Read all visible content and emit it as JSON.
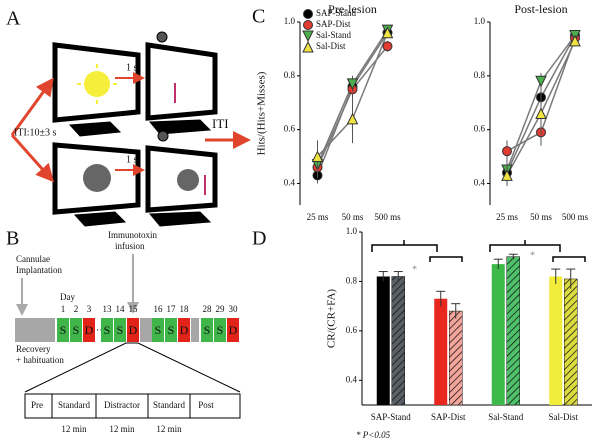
{
  "panel_labels": [
    "A",
    "B",
    "C",
    "D"
  ],
  "diagram_a": {
    "delay_top": "1 s",
    "iti_start": "ITI:10±3 s",
    "delay_bottom": "1 s",
    "iti_end": "ITI"
  },
  "timeline": {
    "cannulae_1": "Cannulae",
    "cannulae_2": "Implantation",
    "day": "Day",
    "infusion_1": "Immunotoxin",
    "infusion_2": "infusion",
    "recovery_1": "Recovery",
    "recovery_2": "+ habituation",
    "days": [
      {
        "day": "1",
        "session": "S"
      },
      {
        "day": "2",
        "session": "S"
      },
      {
        "day": "3",
        "session": "D"
      },
      {
        "day": "13",
        "session": "S"
      },
      {
        "day": "14",
        "session": "S"
      },
      {
        "day": "15",
        "session": "D"
      },
      {
        "day": "16",
        "session": "S"
      },
      {
        "day": "17",
        "session": "S"
      },
      {
        "day": "18",
        "session": "D"
      },
      {
        "day": "28",
        "session": "S"
      },
      {
        "day": "29",
        "session": "S"
      },
      {
        "day": "30",
        "session": "D"
      }
    ],
    "session_colors": {
      "S": "#3fb54a",
      "D": "#e2231a"
    }
  },
  "session": {
    "phases": [
      "Pre",
      "Standard",
      "Distractor",
      "Standard",
      "Post"
    ],
    "durations": [
      "12 min",
      "12 min",
      "12 min"
    ]
  },
  "chart_data": [
    {
      "type": "line",
      "title": "Pre-lesion",
      "y_label": "Hits/(Hits+Misses)",
      "legend": true,
      "line_color": "#7a7a7a",
      "categories": [
        "25 ms",
        "50 ms",
        "500 ms"
      ],
      "ylim": [
        0.32,
        1.0
      ],
      "yticks": [
        0.4,
        0.6,
        0.8,
        {
          "value": 1.0,
          "label": "1.0"
        }
      ],
      "series": [
        {
          "name": "SAP-Stand",
          "color": "#000000",
          "marker": "circle",
          "values": [
            0.43,
            0.76,
            0.96
          ],
          "errors": [
            0.03,
            0.04,
            0.02
          ]
        },
        {
          "name": "SAP-Dist",
          "color": "#e03c31",
          "marker": "circle",
          "values": [
            0.46,
            0.75,
            0.91
          ],
          "errors": [
            0.04,
            0.04,
            0.02
          ]
        },
        {
          "name": "Sal-Stand",
          "color": "#4cae4c",
          "marker": "down-triangle",
          "values": [
            0.47,
            0.77,
            0.97
          ],
          "errors": [
            0.04,
            0.03,
            0.02
          ]
        },
        {
          "name": "Sal-Dist",
          "color": "#f0e442",
          "marker": "up-triangle",
          "values": [
            0.5,
            0.64,
            0.96
          ],
          "errors": [
            0.06,
            0.09,
            0.02
          ]
        }
      ]
    },
    {
      "type": "line",
      "title": "Post-lesion",
      "line_color": "#7a7a7a",
      "categories": [
        "25 ms",
        "50 ms",
        "500 ms"
      ],
      "ylim": [
        0.32,
        1.0
      ],
      "yticks": [
        0.4,
        0.6,
        0.8,
        {
          "value": 1.0,
          "label": "1.0"
        }
      ],
      "series": [
        {
          "color": "#000000",
          "marker": "circle",
          "values": [
            0.44,
            0.72,
            0.95
          ],
          "errors": [
            0.03,
            0.04,
            0.02
          ]
        },
        {
          "color": "#e03c31",
          "marker": "circle",
          "values": [
            0.52,
            0.59,
            0.94
          ],
          "errors": [
            0.04,
            0.05,
            0.02
          ]
        },
        {
          "color": "#4cae4c",
          "marker": "down-triangle",
          "values": [
            0.45,
            0.78,
            0.95
          ],
          "errors": [
            0.04,
            0.03,
            0.02
          ]
        },
        {
          "color": "#f0e442",
          "marker": "up-triangle",
          "values": [
            0.43,
            0.66,
            0.93
          ],
          "errors": [
            0.04,
            0.08,
            0.02
          ]
        }
      ]
    },
    {
      "type": "bar",
      "y_label": "CR/(CR+FA)",
      "annotations": [
        "*",
        "*"
      ],
      "categories": [
        "SAP-Stand",
        "SAP-Dist",
        "Sal-Stand",
        "Sal-Dist"
      ],
      "ylim": [
        0.3,
        1.0
      ],
      "yticks": [
        0.4,
        0.6,
        0.8,
        {
          "value": 1.0,
          "label": "1.0"
        }
      ],
      "series": [
        {
          "colors": [
            "#000000",
            "#e8271e",
            "#3db94a",
            "#f2ec3b"
          ],
          "values": [
            0.82,
            0.73,
            0.87,
            0.82
          ],
          "errors": [
            0.02,
            0.03,
            0.02,
            0.03
          ]
        },
        {
          "colors": [
            "#5a5f66",
            "#f3a59a",
            "#4fc16a",
            "#dedb3f"
          ],
          "hatched": true,
          "values": [
            0.82,
            0.68,
            0.9,
            0.81
          ],
          "errors": [
            0.02,
            0.03,
            0.01,
            0.04
          ]
        }
      ]
    }
  ],
  "footnote": "* P<0.05"
}
